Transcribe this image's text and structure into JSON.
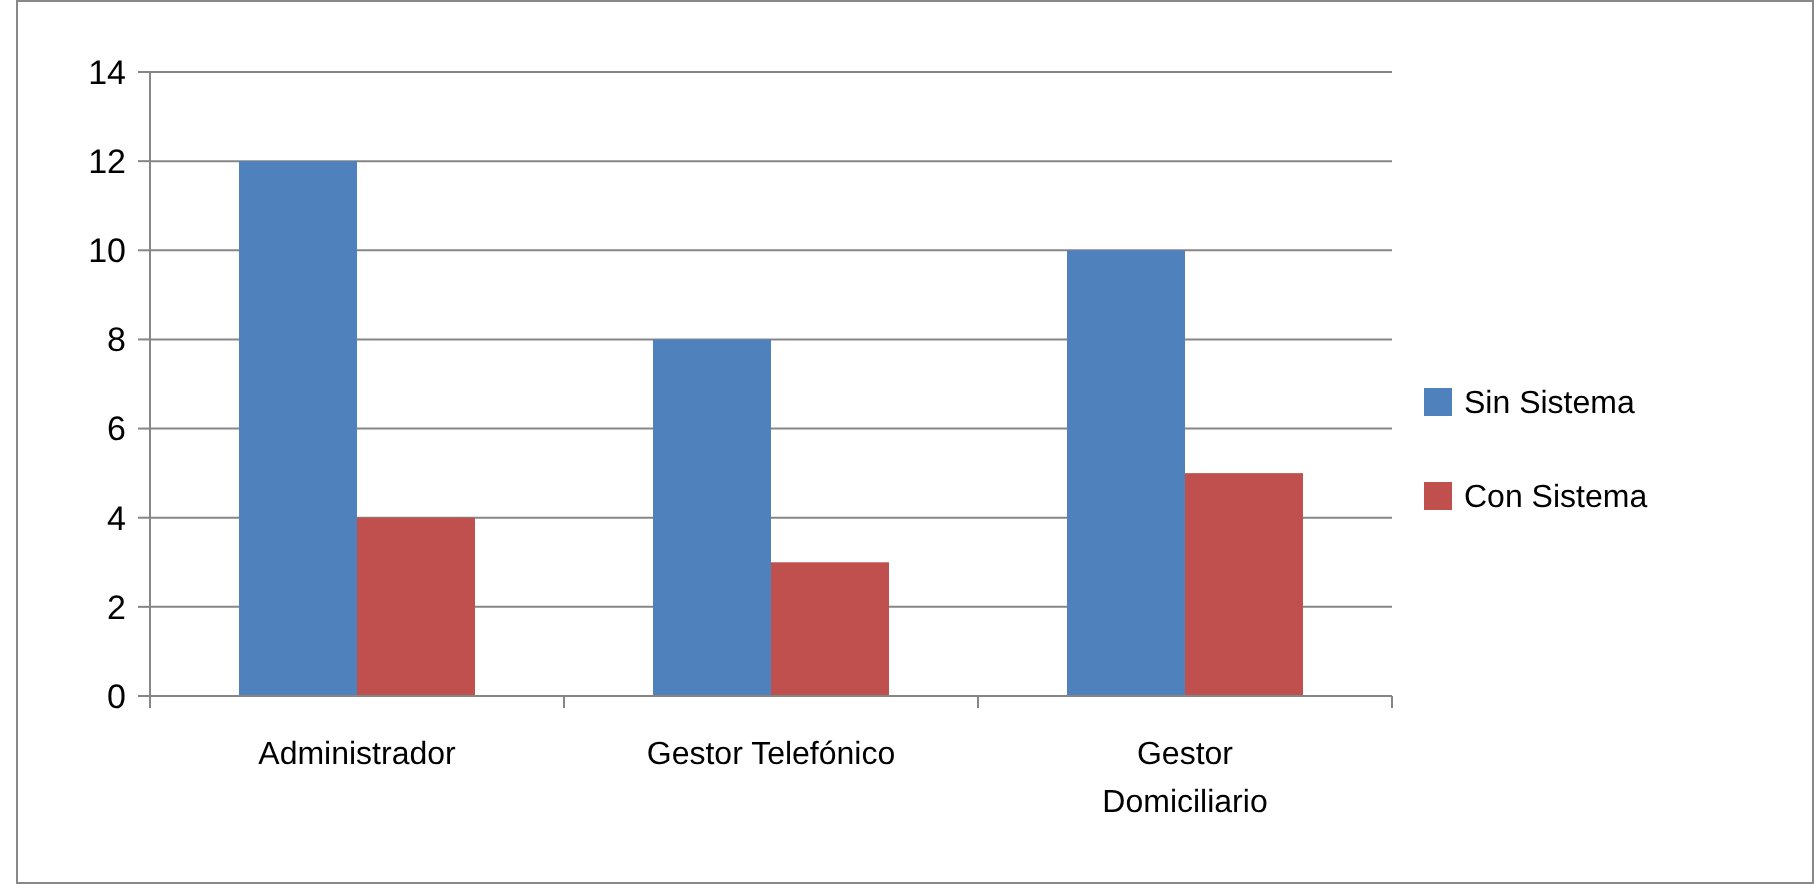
{
  "chart_data": {
    "type": "bar",
    "categories": [
      "Administrador",
      "Gestor Telefónico",
      "Gestor Domiciliario"
    ],
    "series": [
      {
        "name": "Sin Sistema",
        "color": "#4f81bd",
        "values": [
          12,
          8,
          10
        ]
      },
      {
        "name": "Con Sistema",
        "color": "#c0504d",
        "values": [
          4,
          3,
          5
        ]
      }
    ],
    "ylim": [
      0,
      14
    ],
    "yticks": [
      0,
      2,
      4,
      6,
      8,
      10,
      12,
      14
    ],
    "grid": "y",
    "legend": "right"
  }
}
